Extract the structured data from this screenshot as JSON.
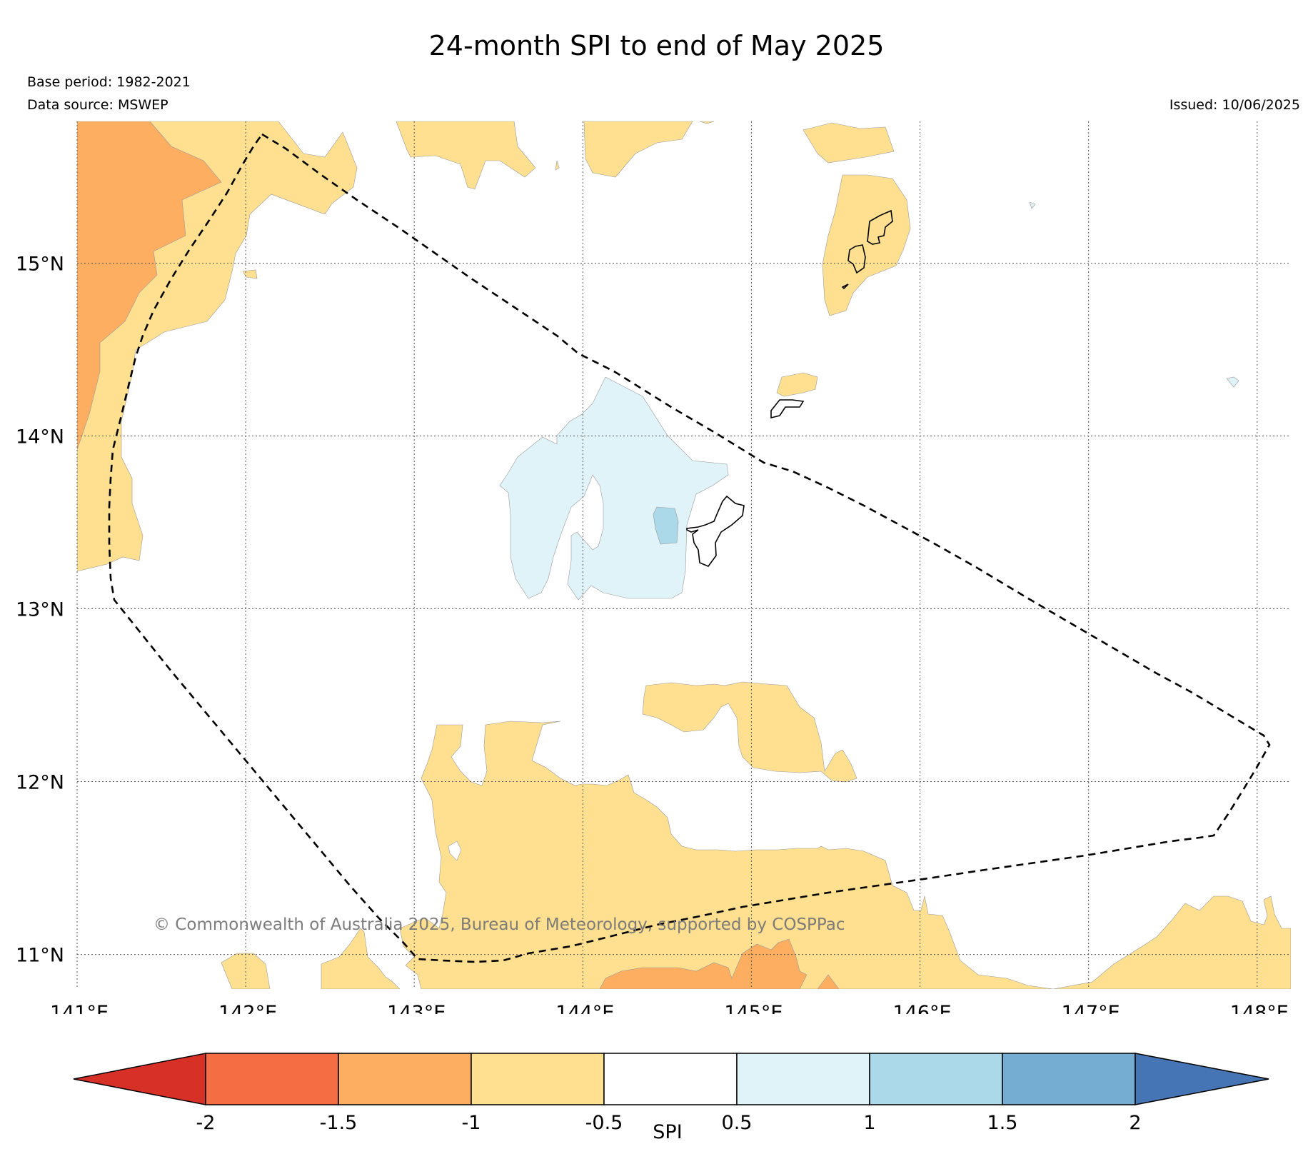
{
  "title": "24-month SPI to end of May 2025",
  "base_period": "Base period: 1982-2021",
  "data_source": "Data source: MSWEP",
  "issued": "Issued: 10/06/2025",
  "copyright": "© Commonwealth of Australia 2025, Bureau of Meteorology, supported by COSPPac",
  "map": {
    "lon_ticks": [
      "141°E",
      "142°E",
      "143°E",
      "144°E",
      "145°E",
      "146°E",
      "147°E",
      "148°E"
    ],
    "lat_ticks": [
      "15°N",
      "14°N",
      "13°N",
      "12°N",
      "11°N"
    ],
    "lon_values": [
      141,
      142,
      143,
      144,
      145,
      146,
      147,
      148
    ],
    "lat_values": [
      15,
      14,
      13,
      12,
      11
    ],
    "lon_range": [
      141,
      148.2
    ],
    "lat_range": [
      10.8,
      15.82
    ]
  },
  "colorbar": {
    "label": "SPI",
    "tick_labels": [
      "-2",
      "-1.5",
      "-1",
      "-0.5",
      "0.5",
      "1",
      "1.5",
      "2"
    ],
    "colors": [
      "#d73027",
      "#f46d43",
      "#fdae61",
      "#fee090",
      "#ffffff",
      "#e0f3f8",
      "#abd9e9",
      "#74add1",
      "#4575b4"
    ]
  }
}
